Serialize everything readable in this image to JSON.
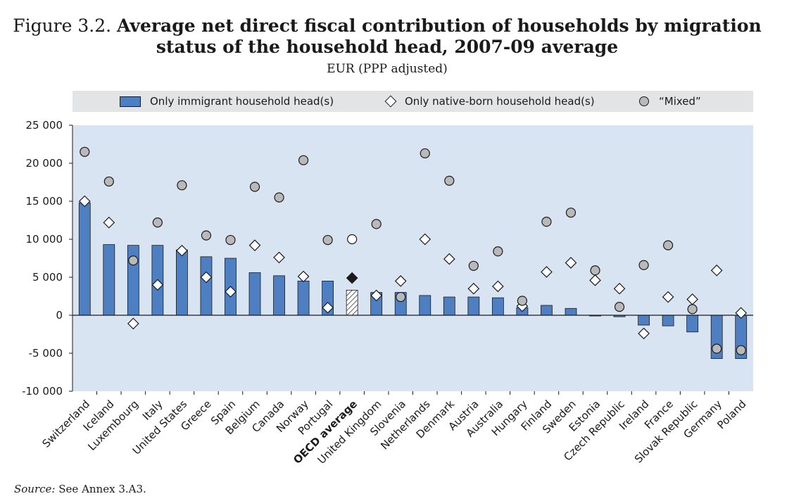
{
  "title": {
    "figure": "Figure 3.2.",
    "line1": "Average net direct fiscal contribution of households by migration",
    "line2": "status of the household head, 2007-09 average"
  },
  "subtitle": "EUR (PPP adjusted)",
  "legend": {
    "immigrant": "Only immigrant household head(s)",
    "native": "Only native-born household head(s)",
    "mixed": "“Mixed”"
  },
  "source": {
    "label": "Source:",
    "text": "See Annex 3.A3."
  },
  "colors": {
    "bar": "#4e7fc3",
    "plot_bg": "#d9e4f2",
    "mixed": "#b9b9b9",
    "outline": "#1a1a1a"
  },
  "chart_data": {
    "type": "bar",
    "ylim": [
      -10000,
      25000
    ],
    "yticks": [
      25000,
      20000,
      15000,
      10000,
      5000,
      0,
      -5000,
      -10000
    ],
    "ytick_labels": [
      "25 000",
      "20 000",
      "15 000",
      "10 000",
      "5 000",
      "0",
      "-5 000",
      "-10 000"
    ],
    "grid": false,
    "legend_position": "top",
    "categories": [
      "Switzerland",
      "Iceland",
      "Luxembourg",
      "Italy",
      "United States",
      "Greece",
      "Spain",
      "Belgium",
      "Canada",
      "Norway",
      "Portugal",
      "OECD average",
      "United Kingdom",
      "Slovenia",
      "Netherlands",
      "Denmark",
      "Austria",
      "Australia",
      "Hungary",
      "Finland",
      "Sweden",
      "Estonia",
      "Czech Republic",
      "Ireland",
      "France",
      "Slovak Republic",
      "Germany",
      "Poland"
    ],
    "highlight_category": "OECD average",
    "series": [
      {
        "name": "Only immigrant household head(s)",
        "marker": "bar",
        "values": [
          14800,
          9300,
          9200,
          9200,
          8600,
          7700,
          7500,
          5600,
          5200,
          4500,
          4500,
          3300,
          3000,
          3000,
          2600,
          2400,
          2400,
          2300,
          1000,
          1300,
          900,
          -100,
          -200,
          -1300,
          -1400,
          -2200,
          -5700,
          -5700
        ]
      },
      {
        "name": "Only native-born household head(s)",
        "marker": "diamond",
        "values": [
          15000,
          12200,
          -1100,
          4000,
          8500,
          5000,
          3100,
          9200,
          7600,
          5100,
          1000,
          4900,
          2600,
          4500,
          10000,
          7400,
          3500,
          3800,
          1200,
          5700,
          6900,
          4600,
          3500,
          -2400,
          2400,
          2100,
          5900,
          300
        ]
      },
      {
        "name": "“Mixed”",
        "marker": "circle",
        "values": [
          21500,
          17600,
          7200,
          12200,
          17100,
          10500,
          9900,
          16900,
          15500,
          20400,
          9900,
          10000,
          12000,
          2400,
          21300,
          17700,
          6500,
          8400,
          1900,
          12300,
          13500,
          5900,
          1100,
          6600,
          9200,
          800,
          -4400,
          -4600
        ]
      }
    ]
  }
}
